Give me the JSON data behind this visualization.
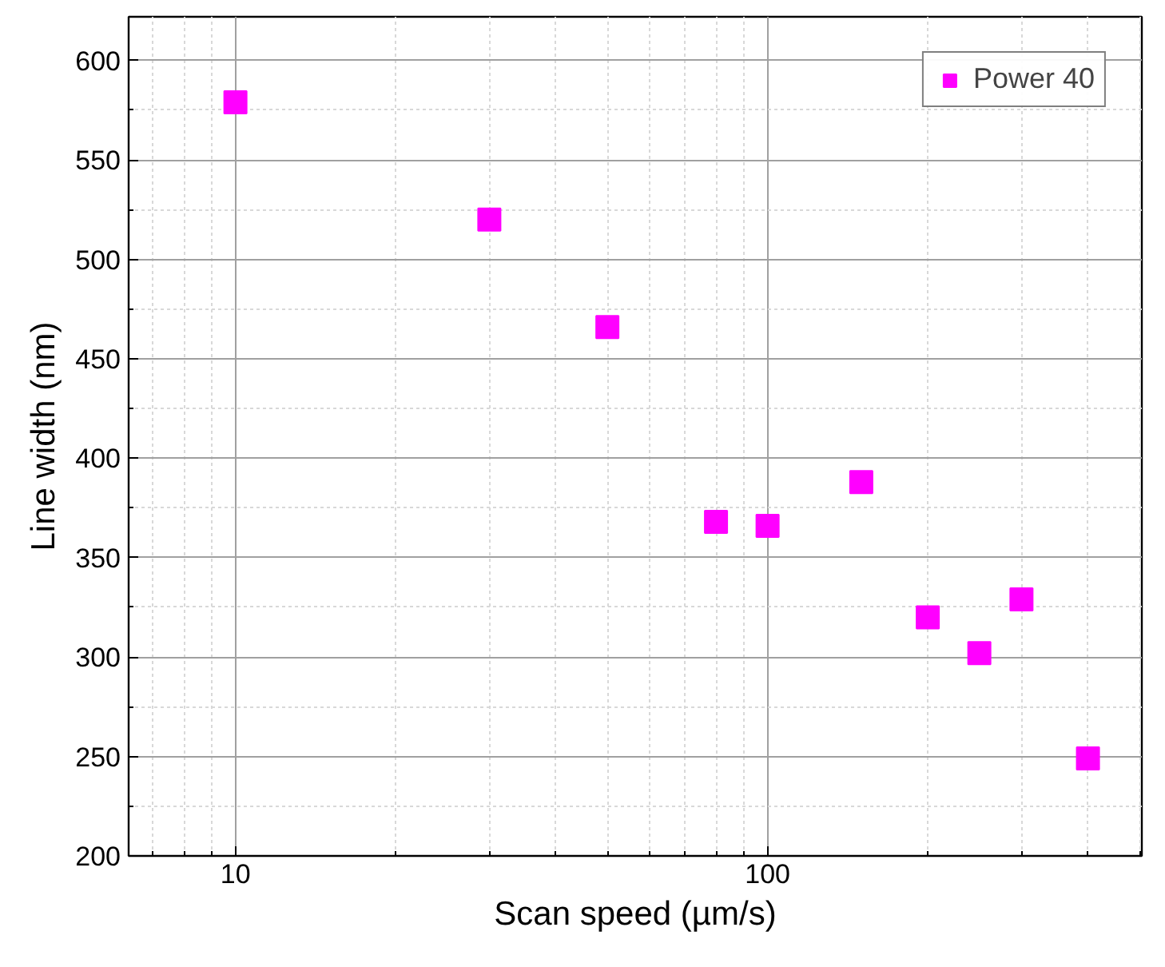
{
  "chart_data": {
    "type": "scatter",
    "xlabel": "Scan speed (µm/s)",
    "ylabel": "Line width (nm)",
    "x": [
      10,
      30,
      50,
      80,
      100,
      150,
      200,
      250,
      300,
      400
    ],
    "series": [
      {
        "name": "Power 40",
        "color": "#ff00ff",
        "values": [
          579,
          520,
          466,
          368,
          366,
          388,
          320,
          302,
          329,
          249
        ]
      }
    ],
    "log": "x",
    "xlim": [
      6.3,
      505
    ],
    "xticks": [
      10,
      100
    ],
    "ylim": [
      200,
      622
    ],
    "yticks": [
      200,
      250,
      300,
      350,
      400,
      450,
      500,
      550,
      600
    ],
    "grid": true,
    "legend": "top right",
    "marker": "square"
  }
}
